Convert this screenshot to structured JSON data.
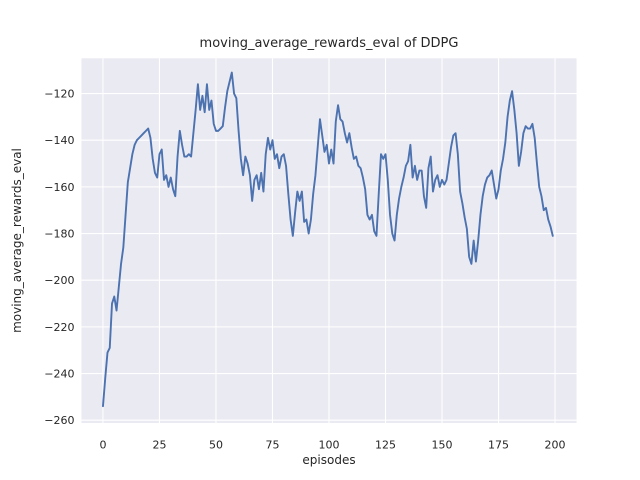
{
  "chart_data": {
    "type": "line",
    "title": "moving_average_rewards_eval of DDPG",
    "xlabel": "episodes",
    "ylabel": "moving_average_rewards_eval",
    "grid": true,
    "legend_position": "none",
    "xlim": [
      -9.5,
      209.5
    ],
    "ylim": [
      -261.2,
      -104.9
    ],
    "x_tick_values": [
      0,
      25,
      50,
      75,
      100,
      125,
      150,
      175,
      200
    ],
    "x_tick_labels": [
      "0",
      "25",
      "50",
      "75",
      "100",
      "125",
      "150",
      "175",
      "200"
    ],
    "y_tick_values": [
      -120,
      -140,
      -160,
      -180,
      -200,
      -220,
      -240,
      -260
    ],
    "y_tick_labels": [
      "−120",
      "−140",
      "−160",
      "−180",
      "−200",
      "−220",
      "−240",
      "−260"
    ],
    "series": [
      {
        "name": "moving_average_rewards_eval",
        "color": "#4C72B0",
        "x_start": 0,
        "x_step": 1,
        "values": [
          -254,
          -242,
          -231,
          -229,
          -210,
          -207,
          -213,
          -203,
          -193,
          -186,
          -172,
          -158,
          -152,
          -146,
          -142,
          -140,
          -139,
          -138,
          -137,
          -136,
          -135,
          -139,
          -148,
          -154,
          -156,
          -146,
          -144,
          -157,
          -155,
          -160,
          -156,
          -161,
          -164,
          -147,
          -136,
          -142,
          -147,
          -147,
          -146,
          -147,
          -137,
          -127,
          -116,
          -127,
          -121,
          -128,
          -116,
          -127,
          -123,
          -133,
          -136,
          -136,
          -135,
          -134,
          -126,
          -119,
          -115,
          -111,
          -120,
          -122,
          -136,
          -148,
          -155,
          -147,
          -150,
          -155,
          -166,
          -157,
          -155,
          -161,
          -154,
          -162,
          -146,
          -139,
          -144,
          -140,
          -148,
          -146,
          -152,
          -147,
          -146,
          -151,
          -163,
          -174,
          -181,
          -171,
          -162,
          -166,
          -162,
          -175,
          -174,
          -180,
          -174,
          -163,
          -155,
          -143,
          -131,
          -138,
          -145,
          -142,
          -150,
          -144,
          -150,
          -132,
          -125,
          -131,
          -132,
          -137,
          -141,
          -137,
          -143,
          -148,
          -147,
          -151,
          -152,
          -156,
          -161,
          -172,
          -174,
          -172,
          -179,
          -181,
          -163,
          -146,
          -148,
          -146,
          -157,
          -172,
          -180,
          -183,
          -172,
          -165,
          -160,
          -156,
          -151,
          -149,
          -142,
          -156,
          -151,
          -157,
          -153,
          -153,
          -164,
          -169,
          -152,
          -147,
          -162,
          -157,
          -155,
          -160,
          -157,
          -159,
          -157,
          -150,
          -143,
          -138,
          -137,
          -146,
          -162,
          -167,
          -173,
          -178,
          -190,
          -193,
          -183,
          -192,
          -183,
          -172,
          -164,
          -159,
          -156,
          -155,
          -153,
          -159,
          -165,
          -161,
          -153,
          -148,
          -141,
          -130,
          -123,
          -119,
          -127,
          -137,
          -151,
          -145,
          -137,
          -134,
          -135,
          -135,
          -133,
          -139,
          -150,
          -160,
          -164,
          -170,
          -169,
          -174,
          -177,
          -181
        ]
      }
    ]
  },
  "style": {
    "figure_bg": "#ffffff",
    "axes_bg": "#EAEAF2",
    "grid_color": "#ffffff",
    "text_color": "#262626",
    "line_color": "#4C72B0"
  }
}
